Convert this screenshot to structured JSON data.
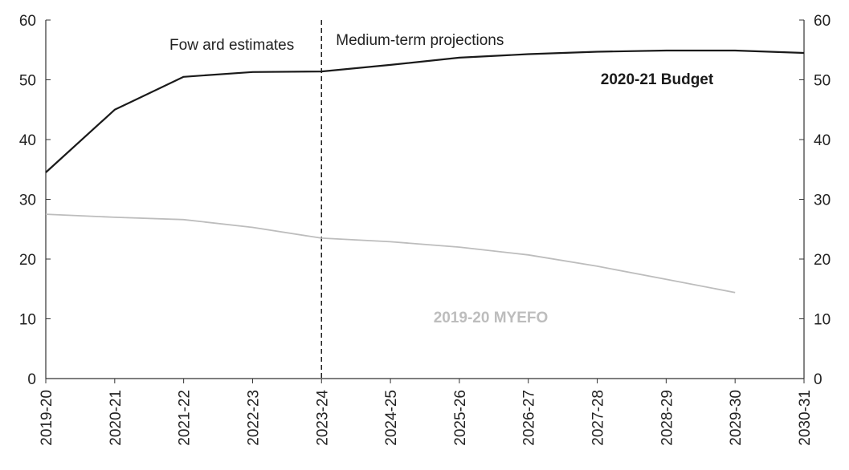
{
  "chart_data": {
    "type": "line",
    "categories": [
      "2019-20",
      "2020-21",
      "2021-22",
      "2022-23",
      "2023-24",
      "2024-25",
      "2025-26",
      "2026-27",
      "2027-28",
      "2028-29",
      "2029-30",
      "2030-31"
    ],
    "series": [
      {
        "name": "2020-21 Budget",
        "color": "#1a1a1a",
        "values": [
          34.5,
          45.0,
          50.5,
          51.3,
          51.4,
          52.5,
          53.7,
          54.3,
          54.7,
          54.9,
          54.9,
          54.5
        ]
      },
      {
        "name": "2019-20 MYEFO",
        "color": "#bdbdbd",
        "values": [
          27.5,
          27.0,
          26.6,
          25.3,
          23.5,
          22.9,
          22.0,
          20.7,
          18.8,
          16.6,
          14.4,
          null
        ]
      }
    ],
    "ylim": [
      0,
      60
    ],
    "yticks": [
      0,
      10,
      20,
      30,
      40,
      50,
      60
    ],
    "y2ticks": [
      0,
      10,
      20,
      30,
      40,
      50,
      60
    ],
    "divider_at": "2023-24",
    "annotations": {
      "left": "Fow ard estimates",
      "right": "Medium-term projections"
    },
    "grid": false,
    "legend": "inline"
  }
}
